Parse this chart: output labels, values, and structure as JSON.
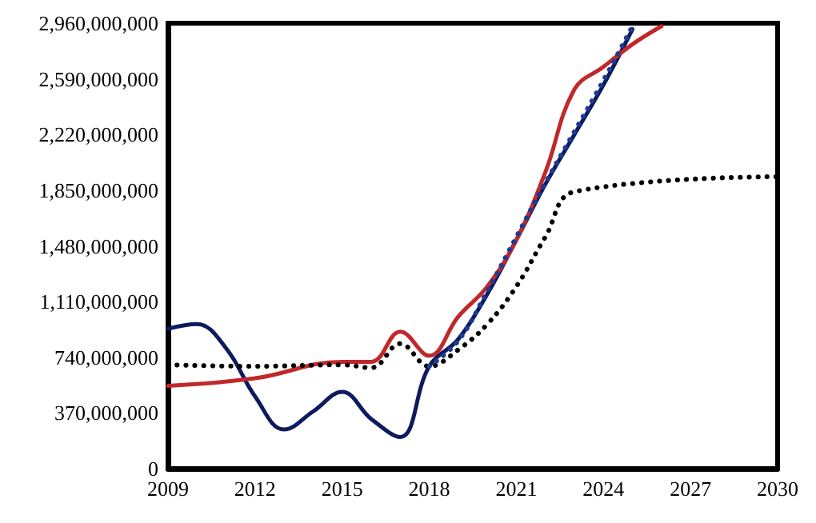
{
  "chart_data": {
    "type": "line",
    "xlim": [
      2009,
      2030
    ],
    "xticks": [
      2009,
      2012,
      2015,
      2018,
      2021,
      2024,
      2027,
      2030
    ],
    "ylim": [
      0,
      2960000000
    ],
    "yticks": [
      {
        "value": 0,
        "label": "0"
      },
      {
        "value": 370000000,
        "label": "370,000,000"
      },
      {
        "value": 740000000,
        "label": "740,000,000"
      },
      {
        "value": 1110000000,
        "label": "1,110,000,000"
      },
      {
        "value": 1480000000,
        "label": "1,480,000,000"
      },
      {
        "value": 1850000000,
        "label": "1,850,000,000"
      },
      {
        "value": 2220000000,
        "label": "2,220,000,000"
      },
      {
        "value": 2590000000,
        "label": "2,590,000,000"
      },
      {
        "value": 2960000000,
        "label": "2,960,000,000"
      }
    ],
    "grid": false,
    "marker": "none",
    "series": [
      {
        "color": "#0d1b5e",
        "line_style": "solid",
        "x": [
          2009,
          2010,
          2011,
          2012,
          2013,
          2014,
          2015,
          2016,
          2017,
          2018,
          2019,
          2020,
          2021,
          2022,
          2023,
          2024,
          2025
        ],
        "values": [
          930000000,
          960000000,
          800000000,
          480000000,
          260000000,
          380000000,
          510000000,
          330000000,
          210000000,
          680000000,
          860000000,
          1160000000,
          1520000000,
          1890000000,
          2220000000,
          2550000000,
          2920000000
        ]
      },
      {
        "color": "#c0282a",
        "line_style": "solid",
        "x": [
          2009,
          2012,
          2015,
          2016,
          2017,
          2018,
          2019,
          2020,
          2021,
          2022,
          2023,
          2024,
          2025,
          2026
        ],
        "values": [
          550000000,
          600000000,
          710000000,
          710000000,
          910000000,
          750000000,
          1010000000,
          1210000000,
          1520000000,
          1970000000,
          2520000000,
          2670000000,
          2820000000,
          2940000000
        ]
      },
      {
        "color": "#000000",
        "line_style": "dotted",
        "x": [
          2009,
          2012,
          2015,
          2016,
          2017,
          2018,
          2019,
          2020,
          2021,
          2022,
          2023,
          2030
        ],
        "values": [
          690000000,
          680000000,
          690000000,
          670000000,
          830000000,
          680000000,
          790000000,
          960000000,
          1210000000,
          1540000000,
          1840000000,
          1940000000
        ]
      },
      {
        "color": "#1f3a93",
        "line_style": "dotted",
        "x": [
          2018,
          2019,
          2020,
          2021,
          2022,
          2023,
          2024,
          2025
        ],
        "values": [
          680000000,
          850000000,
          1180000000,
          1540000000,
          1900000000,
          2240000000,
          2580000000,
          2940000000
        ]
      }
    ]
  }
}
